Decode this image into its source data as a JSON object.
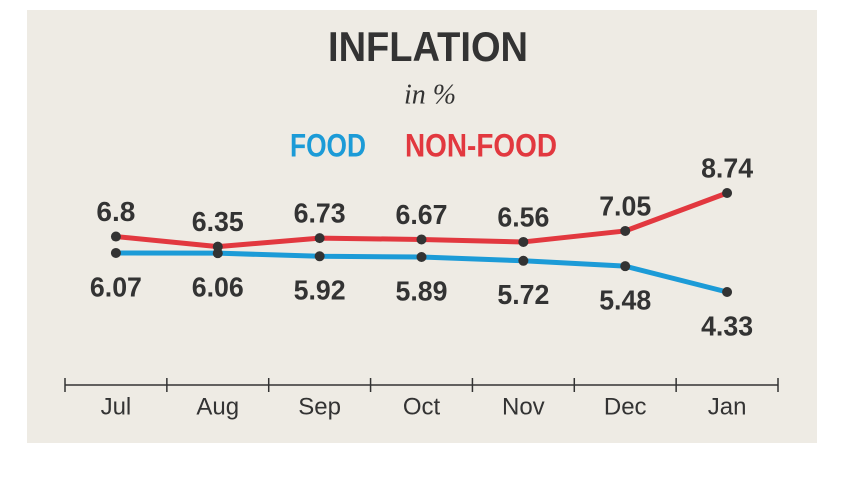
{
  "chart_data": {
    "type": "line",
    "title": "INFLATION",
    "subtitle": "in %",
    "categories": [
      "Jul",
      "Aug",
      "Sep",
      "Oct",
      "Nov",
      "Dec",
      "Jan"
    ],
    "series": [
      {
        "name": "FOOD",
        "color": "#1c9bd7",
        "values": [
          6.07,
          6.06,
          5.92,
          5.89,
          5.72,
          5.48,
          4.33
        ]
      },
      {
        "name": "NON-FOOD",
        "color": "#e2383f",
        "values": [
          6.8,
          6.35,
          6.73,
          6.67,
          6.56,
          7.05,
          8.74
        ]
      }
    ]
  }
}
